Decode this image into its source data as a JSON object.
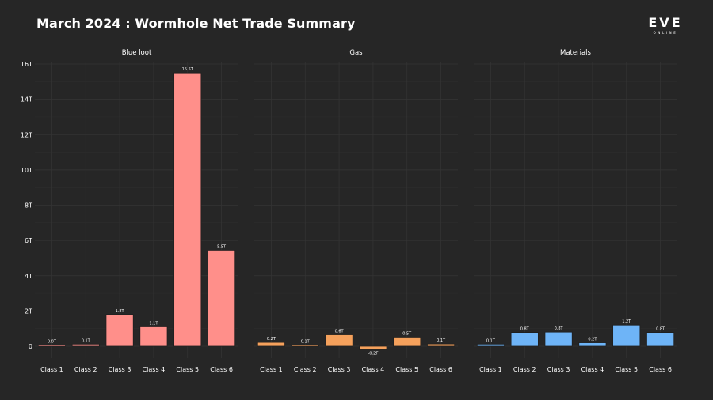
{
  "title": "March 2024 : Wormhole Net Trade Summary",
  "logo": {
    "main": "EVE",
    "sub": "ONLINE"
  },
  "colors": {
    "background": "#262626",
    "grid": "#353535",
    "text": "#ffffff",
    "blue_loot": "#ff8f8a",
    "gas": "#f5a15c",
    "materials": "#6eb4f7"
  },
  "chart_data": {
    "type": "bar",
    "y_ticks": [
      "0",
      "2T",
      "4T",
      "6T",
      "8T",
      "10T",
      "12T",
      "14T",
      "16T"
    ],
    "ylim": [
      -0.25,
      16.1
    ],
    "grid": true,
    "categories": [
      "Class 1",
      "Class 2",
      "Class 3",
      "Class 4",
      "Class 5",
      "Class 6"
    ],
    "panels": [
      {
        "name": "Blue loot",
        "color": "#ff8f8a",
        "values": [
          0.03,
          0.12,
          1.8,
          1.1,
          15.5,
          5.45
        ],
        "labels": [
          "0.0T",
          "0.1T",
          "1.8T",
          "1.1T",
          "15.5T",
          "5.5T"
        ]
      },
      {
        "name": "Gas",
        "color": "#f5a15c",
        "values": [
          0.22,
          0.06,
          0.65,
          -0.2,
          0.52,
          0.13
        ],
        "labels": [
          "0.2T",
          "0.1T",
          "0.6T",
          "-0.2T",
          "0.5T",
          "0.1T"
        ]
      },
      {
        "name": "Materials",
        "color": "#6eb4f7",
        "values": [
          0.12,
          0.78,
          0.8,
          0.2,
          1.2,
          0.78
        ],
        "labels": [
          "0.1T",
          "0.8T",
          "0.8T",
          "0.2T",
          "1.2T",
          "0.8T"
        ]
      }
    ]
  }
}
